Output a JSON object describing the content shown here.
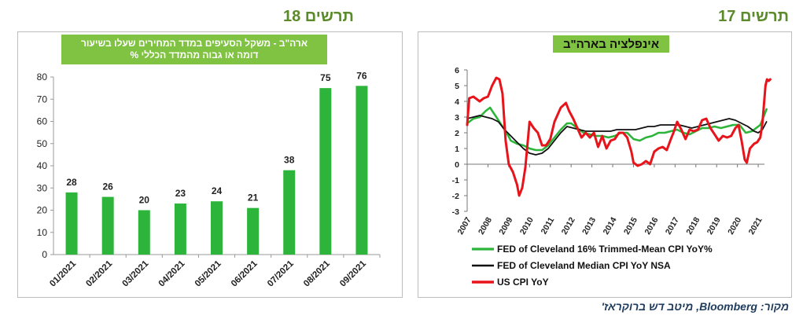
{
  "figures": {
    "left_label": "תרשים 18",
    "right_label": "תרשים 17"
  },
  "source": "מקור: Bloomberg, מיטב דש ברוקראז'",
  "colors": {
    "green": "#2db53b",
    "red": "#e8141b",
    "black": "#111111",
    "title_bg": "#80c342",
    "header": "#5a8a2a"
  },
  "chart_data": [
    {
      "type": "bar",
      "title": "ארה\"ב - משקל הסעיפים במדד המחירים שעלו בשיעור דומה או גבוה מהמדד הכללי %",
      "title_lines": [
        "ארה\"ב - משקל הסעיפים במדד המחירים שעלו בשיעור",
        "דומה או גבוה מהמדד הכללי %"
      ],
      "categories": [
        "01/2021",
        "02/2021",
        "03/2021",
        "04/2021",
        "05/2021",
        "06/2021",
        "07/2021",
        "08/2021",
        "09/2021"
      ],
      "values": [
        28,
        26,
        20,
        23,
        24,
        21,
        38,
        75,
        76
      ],
      "ylim": [
        0,
        80
      ],
      "yticks": [
        0,
        10,
        20,
        30,
        40,
        50,
        60,
        70,
        80
      ],
      "color": "#2db53b",
      "grid": false
    },
    {
      "type": "line",
      "title": "אינפלציה בארה\"ב",
      "xlabels": [
        "2007",
        "2008",
        "2009",
        "2010",
        "2011",
        "2012",
        "2013",
        "2014",
        "2015",
        "2016",
        "2017",
        "2018",
        "2019",
        "2020",
        "2021"
      ],
      "xlim": [
        2007,
        2021.3
      ],
      "ylim": [
        -3,
        6
      ],
      "yticks": [
        -3,
        -2,
        -1,
        0,
        1,
        2,
        3,
        4,
        5,
        6
      ],
      "grid": false,
      "legend_position": "bottom",
      "series": [
        {
          "name": "FED of Cleveland 16% Trimmed-Mean CPI YoY%",
          "color": "#2db53b",
          "points": [
            [
              2007,
              2.6
            ],
            [
              2007.3,
              2.9
            ],
            [
              2007.6,
              3.0
            ],
            [
              2007.9,
              3.4
            ],
            [
              2008.1,
              3.6
            ],
            [
              2008.3,
              3.2
            ],
            [
              2008.5,
              2.8
            ],
            [
              2008.7,
              2.4
            ],
            [
              2008.9,
              2.0
            ],
            [
              2009.1,
              1.5
            ],
            [
              2009.4,
              1.3
            ],
            [
              2009.7,
              1.2
            ],
            [
              2010.0,
              1.0
            ],
            [
              2010.3,
              0.9
            ],
            [
              2010.6,
              0.9
            ],
            [
              2010.9,
              1.2
            ],
            [
              2011.2,
              1.7
            ],
            [
              2011.5,
              2.2
            ],
            [
              2011.8,
              2.6
            ],
            [
              2012.0,
              2.6
            ],
            [
              2012.3,
              2.3
            ],
            [
              2012.6,
              2.0
            ],
            [
              2012.9,
              1.9
            ],
            [
              2013.2,
              1.8
            ],
            [
              2013.5,
              1.8
            ],
            [
              2013.8,
              1.7
            ],
            [
              2014.1,
              1.8
            ],
            [
              2014.4,
              2.0
            ],
            [
              2014.7,
              2.0
            ],
            [
              2015.0,
              1.6
            ],
            [
              2015.3,
              1.5
            ],
            [
              2015.6,
              1.7
            ],
            [
              2015.9,
              1.8
            ],
            [
              2016.2,
              2.0
            ],
            [
              2016.5,
              2.0
            ],
            [
              2016.8,
              2.1
            ],
            [
              2017.1,
              2.2
            ],
            [
              2017.4,
              2.0
            ],
            [
              2017.7,
              1.9
            ],
            [
              2018.0,
              2.1
            ],
            [
              2018.3,
              2.3
            ],
            [
              2018.6,
              2.3
            ],
            [
              2018.9,
              2.4
            ],
            [
              2019.2,
              2.3
            ],
            [
              2019.5,
              2.4
            ],
            [
              2019.8,
              2.5
            ],
            [
              2020.1,
              2.5
            ],
            [
              2020.4,
              2.0
            ],
            [
              2020.7,
              2.1
            ],
            [
              2020.9,
              2.3
            ],
            [
              2021.1,
              2.5
            ],
            [
              2021.25,
              3.0
            ],
            [
              2021.4,
              3.5
            ]
          ]
        },
        {
          "name": "FED of Cleveland Median CPI YoY NSA",
          "color": "#111111",
          "points": [
            [
              2007,
              2.9
            ],
            [
              2007.3,
              3.0
            ],
            [
              2007.6,
              3.1
            ],
            [
              2007.9,
              3.0
            ],
            [
              2008.2,
              2.9
            ],
            [
              2008.5,
              2.7
            ],
            [
              2008.8,
              2.2
            ],
            [
              2009.1,
              1.8
            ],
            [
              2009.4,
              1.4
            ],
            [
              2009.7,
              1.0
            ],
            [
              2010.0,
              0.7
            ],
            [
              2010.3,
              0.6
            ],
            [
              2010.6,
              0.7
            ],
            [
              2010.9,
              1.0
            ],
            [
              2011.2,
              1.5
            ],
            [
              2011.5,
              2.0
            ],
            [
              2011.8,
              2.4
            ],
            [
              2012.1,
              2.3
            ],
            [
              2012.4,
              2.2
            ],
            [
              2012.7,
              2.1
            ],
            [
              2013.0,
              2.1
            ],
            [
              2013.3,
              2.1
            ],
            [
              2013.6,
              2.1
            ],
            [
              2013.9,
              2.1
            ],
            [
              2014.2,
              2.2
            ],
            [
              2014.5,
              2.2
            ],
            [
              2014.8,
              2.2
            ],
            [
              2015.1,
              2.2
            ],
            [
              2015.4,
              2.3
            ],
            [
              2015.7,
              2.4
            ],
            [
              2016.0,
              2.4
            ],
            [
              2016.3,
              2.5
            ],
            [
              2016.6,
              2.5
            ],
            [
              2016.9,
              2.5
            ],
            [
              2017.2,
              2.5
            ],
            [
              2017.5,
              2.4
            ],
            [
              2017.8,
              2.3
            ],
            [
              2018.1,
              2.4
            ],
            [
              2018.4,
              2.5
            ],
            [
              2018.7,
              2.6
            ],
            [
              2019.0,
              2.7
            ],
            [
              2019.3,
              2.8
            ],
            [
              2019.6,
              2.9
            ],
            [
              2019.9,
              2.8
            ],
            [
              2020.2,
              2.6
            ],
            [
              2020.5,
              2.4
            ],
            [
              2020.8,
              2.1
            ],
            [
              2021.0,
              2.0
            ],
            [
              2021.2,
              2.2
            ],
            [
              2021.4,
              2.7
            ]
          ]
        },
        {
          "name": "US CPI YoY",
          "color": "#e8141b",
          "points": [
            [
              2007,
              2.5
            ],
            [
              2007.1,
              4.2
            ],
            [
              2007.3,
              4.3
            ],
            [
              2007.6,
              4.0
            ],
            [
              2007.8,
              4.2
            ],
            [
              2008.0,
              4.3
            ],
            [
              2008.2,
              5.0
            ],
            [
              2008.4,
              5.5
            ],
            [
              2008.55,
              5.4
            ],
            [
              2008.7,
              4.5
            ],
            [
              2008.85,
              1.5
            ],
            [
              2009.0,
              0.0
            ],
            [
              2009.2,
              -0.5
            ],
            [
              2009.4,
              -1.3
            ],
            [
              2009.5,
              -2.0
            ],
            [
              2009.65,
              -1.5
            ],
            [
              2009.8,
              -0.2
            ],
            [
              2010.0,
              2.7
            ],
            [
              2010.2,
              2.3
            ],
            [
              2010.4,
              2.0
            ],
            [
              2010.6,
              1.2
            ],
            [
              2010.8,
              1.2
            ],
            [
              2011.0,
              1.6
            ],
            [
              2011.2,
              2.7
            ],
            [
              2011.5,
              3.6
            ],
            [
              2011.75,
              3.9
            ],
            [
              2011.9,
              3.4
            ],
            [
              2012.1,
              2.9
            ],
            [
              2012.3,
              2.3
            ],
            [
              2012.5,
              1.7
            ],
            [
              2012.7,
              2.0
            ],
            [
              2012.9,
              1.7
            ],
            [
              2013.1,
              2.0
            ],
            [
              2013.3,
              1.1
            ],
            [
              2013.5,
              1.8
            ],
            [
              2013.7,
              1.0
            ],
            [
              2013.9,
              1.5
            ],
            [
              2014.1,
              1.6
            ],
            [
              2014.3,
              2.0
            ],
            [
              2014.5,
              2.0
            ],
            [
              2014.7,
              1.7
            ],
            [
              2014.9,
              0.8
            ],
            [
              2015.0,
              0.1
            ],
            [
              2015.2,
              -0.1
            ],
            [
              2015.4,
              0.0
            ],
            [
              2015.6,
              0.2
            ],
            [
              2015.8,
              0.0
            ],
            [
              2016.0,
              0.8
            ],
            [
              2016.2,
              1.0
            ],
            [
              2016.4,
              1.1
            ],
            [
              2016.6,
              0.9
            ],
            [
              2016.8,
              1.6
            ],
            [
              2016.95,
              2.1
            ],
            [
              2017.1,
              2.7
            ],
            [
              2017.3,
              2.2
            ],
            [
              2017.5,
              1.6
            ],
            [
              2017.7,
              2.2
            ],
            [
              2017.9,
              2.1
            ],
            [
              2018.1,
              2.2
            ],
            [
              2018.3,
              2.8
            ],
            [
              2018.5,
              2.9
            ],
            [
              2018.7,
              2.3
            ],
            [
              2018.9,
              1.9
            ],
            [
              2019.1,
              1.5
            ],
            [
              2019.3,
              1.8
            ],
            [
              2019.5,
              1.7
            ],
            [
              2019.7,
              1.8
            ],
            [
              2019.9,
              2.3
            ],
            [
              2020.05,
              2.5
            ],
            [
              2020.2,
              1.5
            ],
            [
              2020.35,
              0.3
            ],
            [
              2020.45,
              0.1
            ],
            [
              2020.6,
              1.0
            ],
            [
              2020.8,
              1.3
            ],
            [
              2020.95,
              1.4
            ],
            [
              2021.1,
              1.7
            ],
            [
              2021.2,
              2.6
            ],
            [
              2021.3,
              4.2
            ],
            [
              2021.35,
              5.0
            ],
            [
              2021.42,
              5.4
            ],
            [
              2021.5,
              5.3
            ],
            [
              2021.58,
              5.4
            ]
          ]
        }
      ]
    }
  ]
}
